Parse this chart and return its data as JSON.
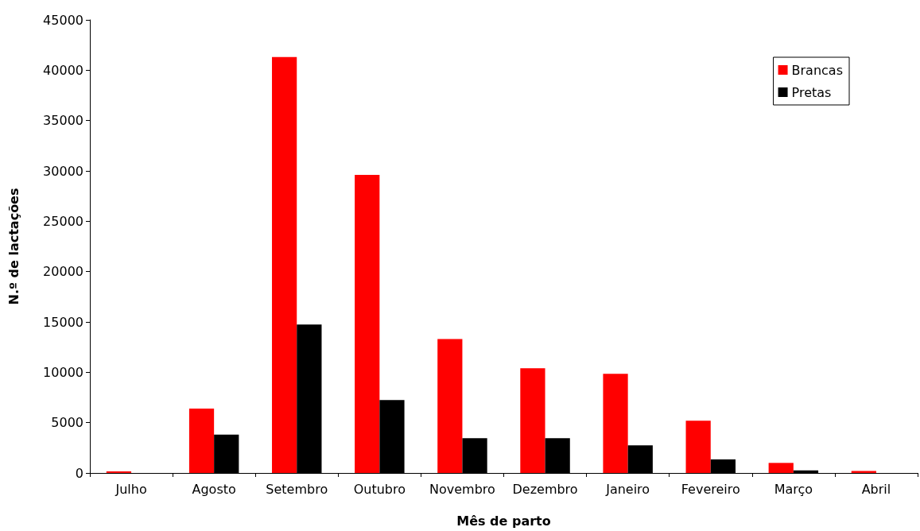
{
  "chart_data": {
    "type": "bar",
    "xlabel": "Mês de parto",
    "ylabel": "N.º de lactações",
    "categories": [
      "Julho",
      "Agosto",
      "Setembro",
      "Outubro",
      "Novembro",
      "Dezembro",
      "Janeiro",
      "Fevereiro",
      "Março",
      "Abril"
    ],
    "series": [
      {
        "name": "Brancas",
        "color": "#ff0000",
        "values": [
          150,
          6400,
          41300,
          29600,
          13300,
          10400,
          9850,
          5200,
          1000,
          200
        ]
      },
      {
        "name": "Pretas",
        "color": "#000000",
        "values": [
          0,
          3800,
          14750,
          7250,
          3450,
          3450,
          2750,
          1350,
          250,
          0
        ]
      }
    ],
    "ylim": [
      0,
      45000
    ],
    "yticks": [
      0,
      5000,
      10000,
      15000,
      20000,
      25000,
      30000,
      35000,
      40000,
      45000
    ],
    "grid": false,
    "legend": "top right"
  }
}
